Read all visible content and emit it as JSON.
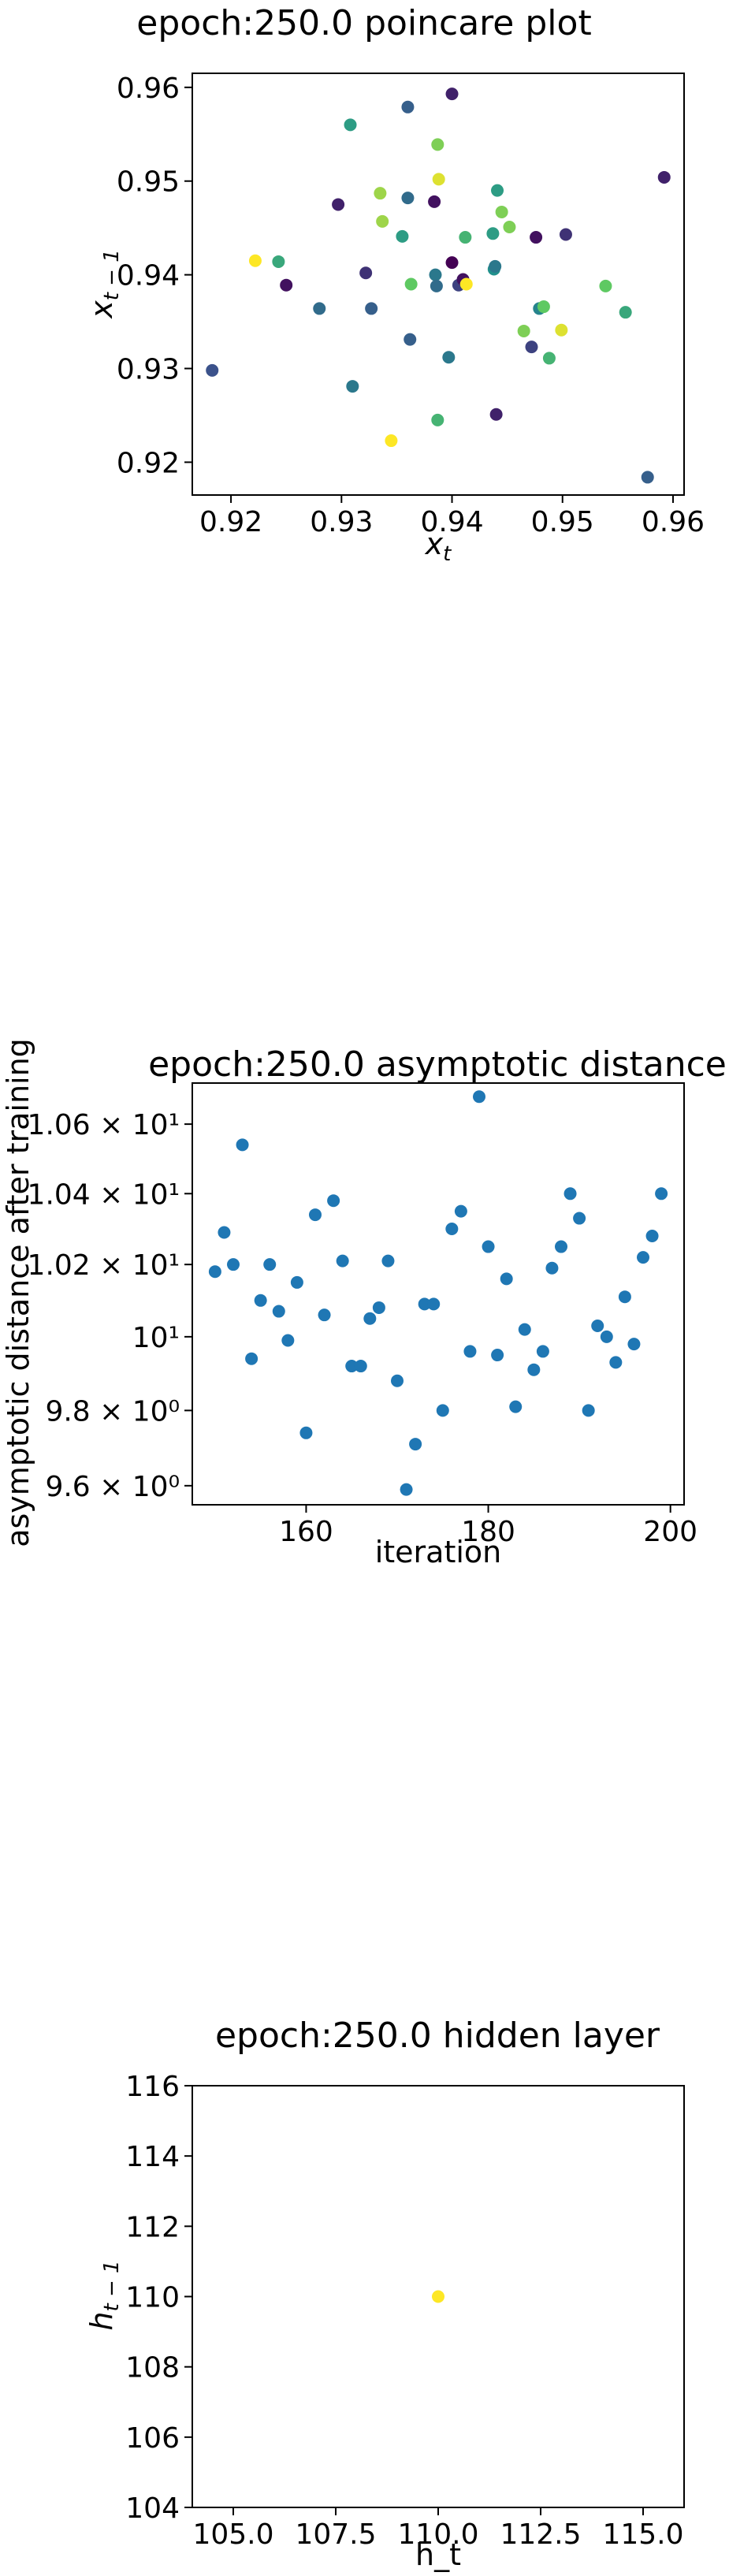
{
  "chart_data": [
    {
      "type": "scatter",
      "title": "epoch:250.0 poincare plot",
      "xlabel": "x_t",
      "ylabel": "x_{t-1}",
      "xlim": [
        0.9165,
        0.961
      ],
      "ylim": [
        0.9165,
        0.9615
      ],
      "xticks": [
        0.92,
        0.93,
        0.94,
        0.95,
        0.96
      ],
      "xtick_labels": [
        "0.92",
        "0.93",
        "0.94",
        "0.95",
        "0.96"
      ],
      "yticks": [
        0.92,
        0.93,
        0.94,
        0.95,
        0.96
      ],
      "ytick_labels": [
        "0.92",
        "0.93",
        "0.94",
        "0.95",
        "0.96"
      ],
      "colormap": "viridis",
      "grid": false,
      "points": [
        {
          "x": 0.9183,
          "y": 0.9298,
          "c": 0.25
        },
        {
          "x": 0.9222,
          "y": 0.9415,
          "c": 1.0
        },
        {
          "x": 0.9243,
          "y": 0.9414,
          "c": 0.6
        },
        {
          "x": 0.925,
          "y": 0.9389,
          "c": 0.05
        },
        {
          "x": 0.928,
          "y": 0.9364,
          "c": 0.35
        },
        {
          "x": 0.9297,
          "y": 0.9475,
          "c": 0.1
        },
        {
          "x": 0.9308,
          "y": 0.956,
          "c": 0.55
        },
        {
          "x": 0.931,
          "y": 0.9281,
          "c": 0.4
        },
        {
          "x": 0.9322,
          "y": 0.9402,
          "c": 0.15
        },
        {
          "x": 0.9327,
          "y": 0.9364,
          "c": 0.3
        },
        {
          "x": 0.9335,
          "y": 0.9487,
          "c": 0.85
        },
        {
          "x": 0.9337,
          "y": 0.9457,
          "c": 0.85
        },
        {
          "x": 0.9345,
          "y": 0.9223,
          "c": 1.0
        },
        {
          "x": 0.9355,
          "y": 0.9441,
          "c": 0.55
        },
        {
          "x": 0.936,
          "y": 0.9579,
          "c": 0.3
        },
        {
          "x": 0.936,
          "y": 0.9482,
          "c": 0.35
        },
        {
          "x": 0.9362,
          "y": 0.9331,
          "c": 0.3
        },
        {
          "x": 0.9363,
          "y": 0.939,
          "c": 0.75
        },
        {
          "x": 0.9384,
          "y": 0.9478,
          "c": 0.05
        },
        {
          "x": 0.9385,
          "y": 0.94,
          "c": 0.4
        },
        {
          "x": 0.9386,
          "y": 0.9388,
          "c": 0.35
        },
        {
          "x": 0.9387,
          "y": 0.9245,
          "c": 0.65
        },
        {
          "x": 0.9387,
          "y": 0.9539,
          "c": 0.8
        },
        {
          "x": 0.9388,
          "y": 0.9502,
          "c": 0.95
        },
        {
          "x": 0.9397,
          "y": 0.9312,
          "c": 0.4
        },
        {
          "x": 0.94,
          "y": 0.9593,
          "c": 0.1
        },
        {
          "x": 0.94,
          "y": 0.9413,
          "c": 0.0
        },
        {
          "x": 0.9406,
          "y": 0.9389,
          "c": 0.2
        },
        {
          "x": 0.941,
          "y": 0.9395,
          "c": 0.05
        },
        {
          "x": 0.9412,
          "y": 0.944,
          "c": 0.65
        },
        {
          "x": 0.9413,
          "y": 0.939,
          "c": 1.0
        },
        {
          "x": 0.9437,
          "y": 0.9444,
          "c": 0.55
        },
        {
          "x": 0.9438,
          "y": 0.9406,
          "c": 0.5
        },
        {
          "x": 0.9439,
          "y": 0.9409,
          "c": 0.4
        },
        {
          "x": 0.944,
          "y": 0.9251,
          "c": 0.1
        },
        {
          "x": 0.9441,
          "y": 0.949,
          "c": 0.55
        },
        {
          "x": 0.9445,
          "y": 0.9467,
          "c": 0.8
        },
        {
          "x": 0.9452,
          "y": 0.9451,
          "c": 0.8
        },
        {
          "x": 0.9465,
          "y": 0.934,
          "c": 0.8
        },
        {
          "x": 0.9472,
          "y": 0.9323,
          "c": 0.2
        },
        {
          "x": 0.9476,
          "y": 0.944,
          "c": 0.05
        },
        {
          "x": 0.9479,
          "y": 0.9364,
          "c": 0.45
        },
        {
          "x": 0.9483,
          "y": 0.9366,
          "c": 0.75
        },
        {
          "x": 0.9488,
          "y": 0.9311,
          "c": 0.65
        },
        {
          "x": 0.9499,
          "y": 0.9341,
          "c": 0.95
        },
        {
          "x": 0.9503,
          "y": 0.9443,
          "c": 0.15
        },
        {
          "x": 0.9539,
          "y": 0.9388,
          "c": 0.75
        },
        {
          "x": 0.9557,
          "y": 0.936,
          "c": 0.6
        },
        {
          "x": 0.9577,
          "y": 0.9184,
          "c": 0.3
        },
        {
          "x": 0.9592,
          "y": 0.9504,
          "c": 0.1
        }
      ]
    },
    {
      "type": "scatter",
      "title": "epoch:250.0 asymptotic distance",
      "xlabel": "iteration",
      "ylabel": "asymptotic distance after training",
      "xlim": [
        147.5,
        201.5
      ],
      "ylim": [
        9.55,
        10.72
      ],
      "log_y": true,
      "xticks": [
        160,
        180,
        200
      ],
      "xtick_labels": [
        "160",
        "180",
        "200"
      ],
      "yticks": [
        9.6,
        9.8,
        10.0,
        10.2,
        10.4,
        10.6
      ],
      "ytick_labels": [
        "9.6 × 10⁰",
        "9.8 × 10⁰",
        "10¹",
        "1.02 × 10¹",
        "1.04 × 10¹",
        "1.06 × 10¹"
      ],
      "color": "#1f77b4",
      "grid": false,
      "x": [
        150,
        151,
        152,
        153,
        154,
        155,
        156,
        157,
        158,
        159,
        160,
        161,
        162,
        163,
        164,
        165,
        166,
        167,
        168,
        169,
        170,
        171,
        172,
        173,
        174,
        175,
        176,
        177,
        178,
        179,
        180,
        181,
        182,
        183,
        184,
        185,
        186,
        187,
        188,
        189,
        190,
        191,
        192,
        193,
        194,
        195,
        196,
        197,
        198,
        199
      ],
      "y": [
        10.18,
        10.29,
        10.2,
        10.54,
        9.94,
        10.1,
        10.2,
        10.07,
        9.99,
        10.15,
        9.74,
        10.34,
        10.06,
        10.38,
        10.21,
        9.92,
        9.92,
        10.05,
        10.08,
        10.21,
        9.88,
        9.59,
        9.71,
        10.09,
        10.09,
        9.8,
        10.3,
        10.35,
        9.96,
        10.68,
        10.25,
        9.95,
        10.16,
        9.81,
        10.02,
        9.91,
        9.96,
        10.19,
        10.25,
        10.4,
        10.33,
        9.8,
        10.03,
        10.0,
        9.93,
        10.11,
        9.98,
        10.22,
        10.28,
        10.4
      ]
    },
    {
      "type": "scatter",
      "title": "epoch:250.0 hidden layer",
      "xlabel": "h_t",
      "ylabel": "h_{t-1}",
      "xlim": [
        104.0,
        116.0
      ],
      "ylim": [
        104.0,
        116.0
      ],
      "xticks": [
        105.0,
        107.5,
        110.0,
        112.5,
        115.0
      ],
      "xtick_labels": [
        "105.0",
        "107.5",
        "110.0",
        "112.5",
        "115.0"
      ],
      "yticks": [
        104,
        106,
        108,
        110,
        112,
        114,
        116
      ],
      "ytick_labels": [
        "104",
        "106",
        "108",
        "110",
        "112",
        "114",
        "116"
      ],
      "colormap": "viridis",
      "grid": false,
      "points": [
        {
          "x": 110.0,
          "y": 110.0,
          "c": 1.0
        }
      ]
    }
  ]
}
